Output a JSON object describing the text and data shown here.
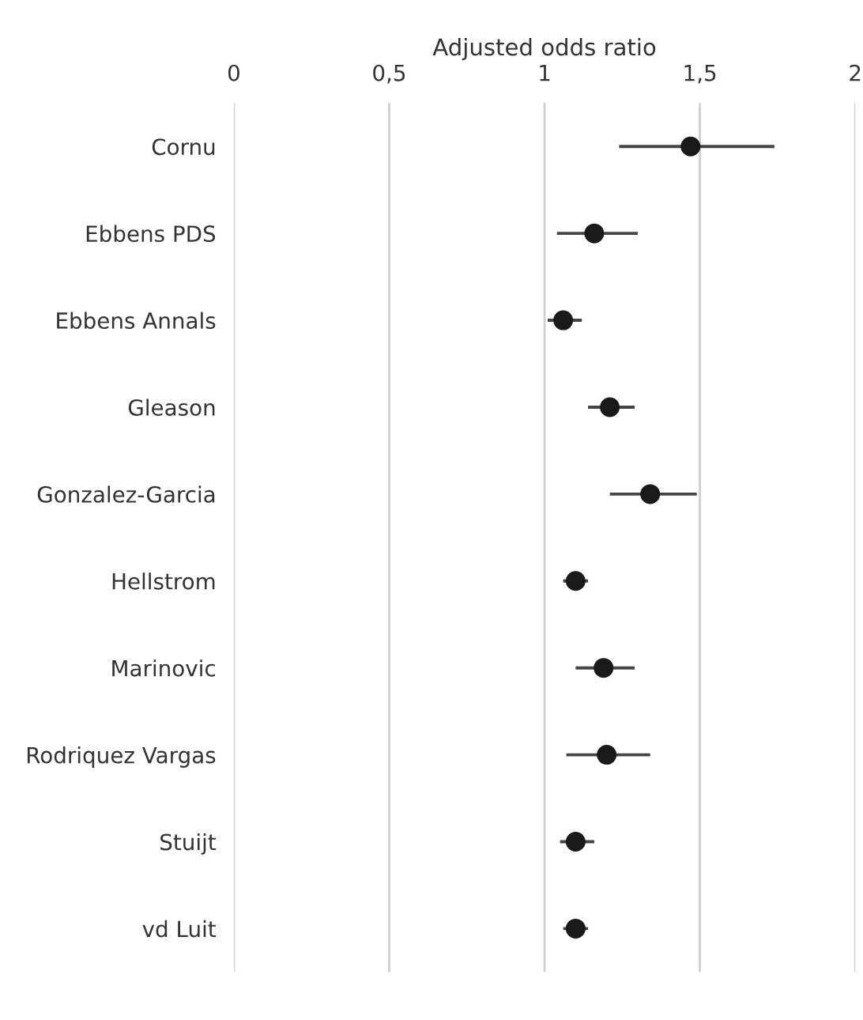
{
  "chart_data": {
    "type": "scatter",
    "orientation": "horizontal",
    "xlabel": "Adjusted odds ratio",
    "categories": [
      "Cornu",
      "Ebbens PDS",
      "Ebbens Annals",
      "Gleason",
      "Gonzalez-Garcia",
      "Hellstrom",
      "Marinovic",
      "Rodriquez Vargas",
      "Stuijt",
      "vd Luit"
    ],
    "values": [
      1.47,
      1.16,
      1.06,
      1.21,
      1.34,
      1.1,
      1.19,
      1.2,
      1.1,
      1.1
    ],
    "errors": [
      [
        1.24,
        1.74
      ],
      [
        1.04,
        1.3
      ],
      [
        1.01,
        1.12
      ],
      [
        1.14,
        1.29
      ],
      [
        1.21,
        1.49
      ],
      [
        1.06,
        1.14
      ],
      [
        1.1,
        1.29
      ],
      [
        1.07,
        1.34
      ],
      [
        1.05,
        1.16
      ],
      [
        1.06,
        1.14
      ]
    ],
    "color": "#1a1a1a",
    "marker": "circle",
    "grid": "x",
    "xlim": [
      0,
      2
    ],
    "xticks": [
      0,
      {
        "value": 0.5,
        "label": "0,5"
      },
      1,
      {
        "value": 1.5,
        "label": "1,5"
      },
      2
    ]
  }
}
